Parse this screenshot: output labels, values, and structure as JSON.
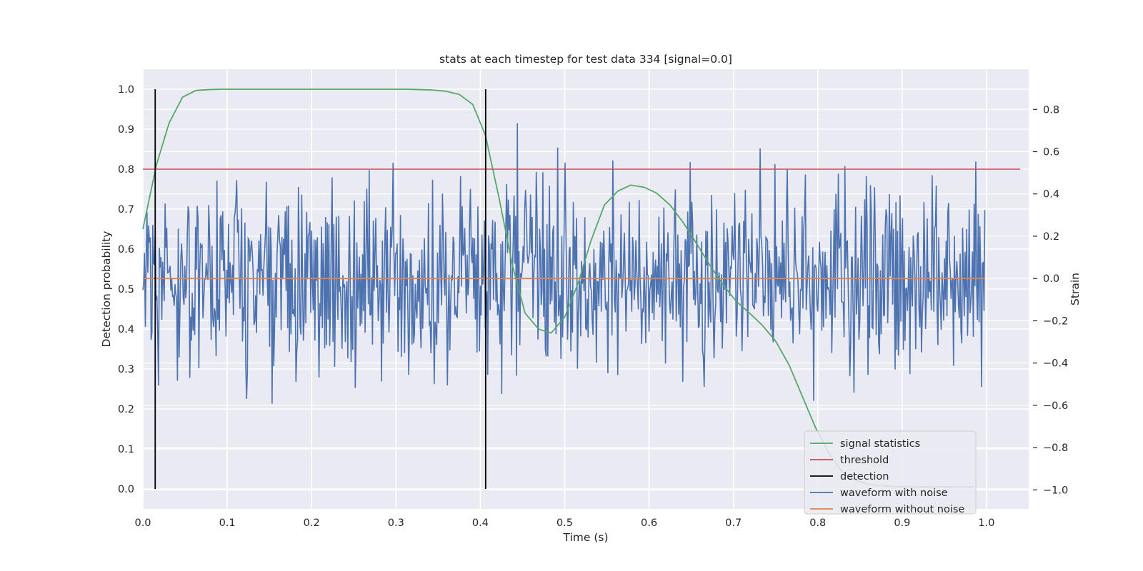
{
  "chart_data": {
    "type": "line",
    "title": "stats at each timestep for test data 334 [signal=0.0]",
    "xlabel": "Time (s)",
    "ylabel": "Detection probability",
    "y2label": "Strain",
    "xlim": [
      0.0,
      1.05
    ],
    "ylim": [
      -0.05,
      1.05
    ],
    "y2lim": [
      -1.09,
      0.99
    ],
    "xticks": [
      "0.0",
      "0.1",
      "0.2",
      "0.3",
      "0.4",
      "0.5",
      "0.6",
      "0.7",
      "0.8",
      "0.9",
      "1.0"
    ],
    "yticks": [
      "0.0",
      "0.1",
      "0.2",
      "0.3",
      "0.4",
      "0.5",
      "0.6",
      "0.7",
      "0.8",
      "0.9",
      "1.0"
    ],
    "y2ticks": [
      "−1.0",
      "−0.8",
      "−0.6",
      "−0.4",
      "−0.2",
      "0.0",
      "0.2",
      "0.4",
      "0.6",
      "0.8"
    ],
    "grid": true,
    "legend_position": "lower-right",
    "series": [
      {
        "name": "signal statistics",
        "axis": "left",
        "color": "#55a868",
        "x": [
          0.0,
          0.016,
          0.031,
          0.047,
          0.063,
          0.078,
          0.094,
          0.11,
          0.125,
          0.141,
          0.156,
          0.172,
          0.188,
          0.203,
          0.219,
          0.234,
          0.25,
          0.266,
          0.281,
          0.297,
          0.313,
          0.328,
          0.344,
          0.359,
          0.375,
          0.391,
          0.406,
          0.422,
          0.438,
          0.453,
          0.469,
          0.484,
          0.5,
          0.516,
          0.531,
          0.547,
          0.563,
          0.578,
          0.594,
          0.609,
          0.625,
          0.641,
          0.656,
          0.672,
          0.688,
          0.703,
          0.719,
          0.734,
          0.75,
          0.766,
          0.781,
          0.797,
          0.813,
          0.828,
          0.844,
          0.859,
          0.875,
          0.891,
          0.906,
          0.922,
          0.938,
          0.953,
          0.969,
          0.984
        ],
        "y": [
          0.65,
          0.81,
          0.915,
          0.98,
          0.997,
          0.999,
          1.0,
          1.0,
          1.0,
          1.0,
          1.0,
          1.0,
          1.0,
          1.0,
          1.0,
          1.0,
          1.0,
          1.0,
          1.0,
          1.0,
          1.0,
          0.999,
          0.998,
          0.995,
          0.987,
          0.962,
          0.885,
          0.73,
          0.56,
          0.44,
          0.4,
          0.39,
          0.43,
          0.515,
          0.62,
          0.71,
          0.745,
          0.76,
          0.755,
          0.74,
          0.71,
          0.665,
          0.615,
          0.56,
          0.51,
          0.47,
          0.44,
          0.41,
          0.37,
          0.31,
          0.235,
          0.155,
          0.09,
          0.045,
          0.022,
          0.012,
          0.008,
          0.006,
          0.005,
          0.005,
          0.005,
          0.005,
          0.005,
          0.005
        ]
      },
      {
        "name": "threshold",
        "axis": "left",
        "color": "#c44e52",
        "x": [
          0.0,
          1.04
        ],
        "y": [
          0.8,
          0.8
        ]
      },
      {
        "name": "detection",
        "axis": "left",
        "color": "#000000",
        "x": [
          0.0146,
          0.4063
        ],
        "y_range": [
          0.0,
          1.0
        ]
      },
      {
        "name": "waveform with noise",
        "axis": "right",
        "color": "#4c72b0",
        "x_range": [
          0.0,
          0.998
        ],
        "samples": 1024,
        "y_range_observed": [
          -1.0,
          0.9
        ]
      },
      {
        "name": "waveform without noise",
        "axis": "right",
        "color": "#dd8452",
        "x": [
          0.0,
          0.998
        ],
        "y": [
          0.0,
          0.0
        ]
      }
    ]
  }
}
